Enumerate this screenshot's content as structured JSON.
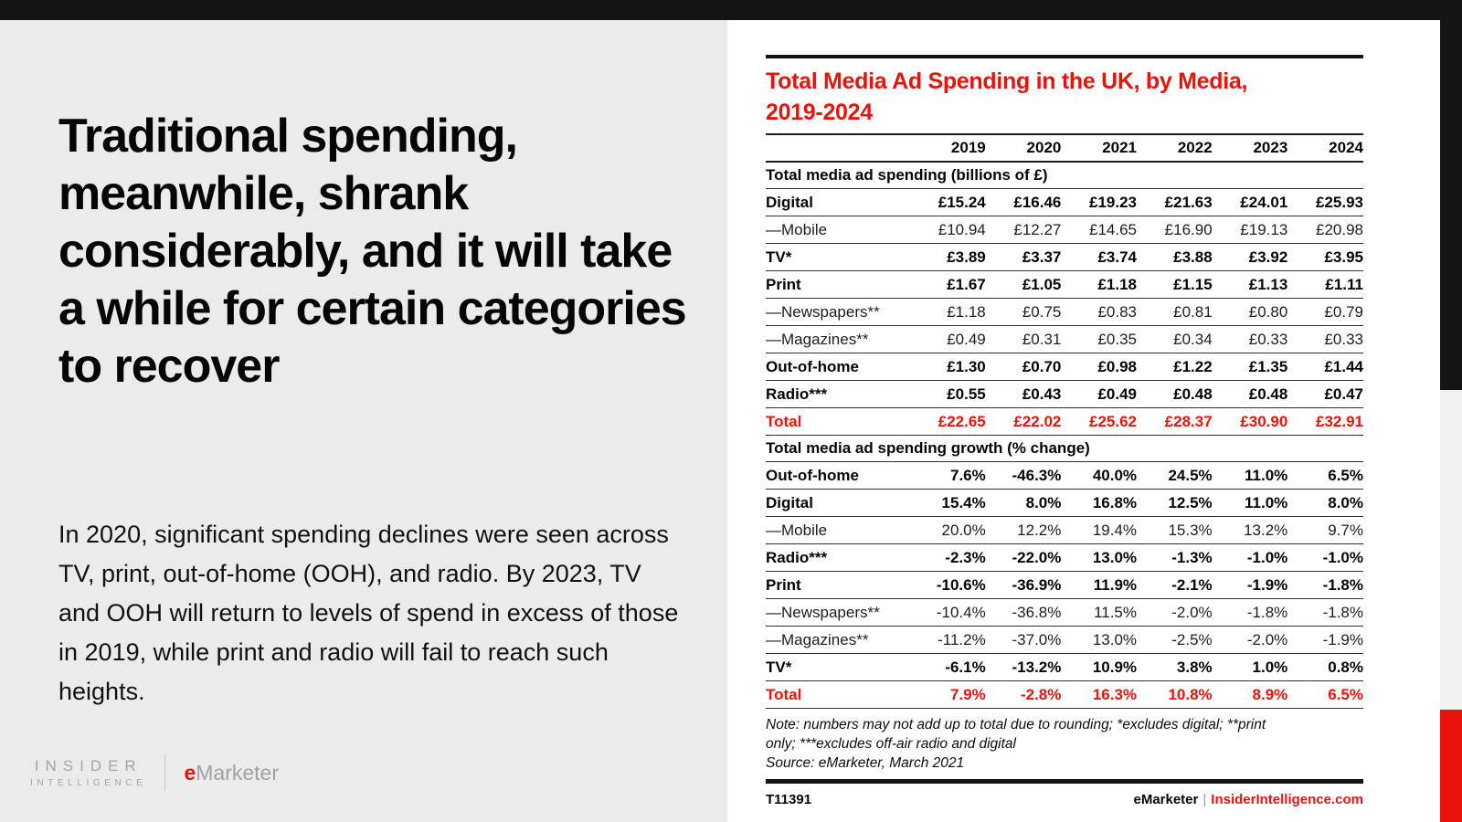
{
  "colors": {
    "accent_red": "#e8130b",
    "top_bar": "#141414",
    "left_panel_bg": "#ebebeb",
    "edge_gray": "#f2f2f2"
  },
  "left_panel": {
    "headline": "Traditional spending, meanwhile, shrank considerably, and it will take a while for certain categories to recover",
    "paragraph": "In 2020, significant spending declines were seen across TV, print, out-of-home (OOH), and radio. By 2023, TV and OOH will return to levels of spend in excess of those in 2019, while print and radio will fail to reach such heights.",
    "logo": {
      "insider": "INSIDER",
      "intelligence": "INTELLIGENCE",
      "emarketer_e": "e",
      "emarketer_rest": "Marketer"
    }
  },
  "table_panel": {
    "title_line1": "Total Media Ad Spending in the UK, by Media,",
    "title_line2": "2019-2024",
    "note_line1": "Note: numbers may not add up to total due to rounding; *excludes digital; **print",
    "note_line2": "only; ***excludes off-air radio and digital",
    "source": "Source: eMarketer, March 2021",
    "footer_id": "T11391",
    "footer_brand": "eMarketer",
    "footer_sep": "|",
    "footer_site": "InsiderIntelligence.com"
  },
  "chart_data": {
    "type": "table",
    "title": "Total Media Ad Spending in the UK, by Media, 2019-2024",
    "columns": [
      "2019",
      "2020",
      "2021",
      "2022",
      "2023",
      "2024"
    ],
    "sections": [
      {
        "header": "Total media ad spending (billions of £)",
        "rows": [
          {
            "label": "Digital",
            "style": "bold",
            "values": [
              "£15.24",
              "£16.46",
              "£19.23",
              "£21.63",
              "£24.01",
              "£25.93"
            ]
          },
          {
            "label": "—Mobile",
            "style": "sub",
            "values": [
              "£10.94",
              "£12.27",
              "£14.65",
              "£16.90",
              "£19.13",
              "£20.98"
            ]
          },
          {
            "label": "TV*",
            "style": "bold",
            "values": [
              "£3.89",
              "£3.37",
              "£3.74",
              "£3.88",
              "£3.92",
              "£3.95"
            ]
          },
          {
            "label": "Print",
            "style": "bold",
            "values": [
              "£1.67",
              "£1.05",
              "£1.18",
              "£1.15",
              "£1.13",
              "£1.11"
            ]
          },
          {
            "label": "—Newspapers**",
            "style": "sub",
            "values": [
              "£1.18",
              "£0.75",
              "£0.83",
              "£0.81",
              "£0.80",
              "£0.79"
            ]
          },
          {
            "label": "—Magazines**",
            "style": "sub",
            "values": [
              "£0.49",
              "£0.31",
              "£0.35",
              "£0.34",
              "£0.33",
              "£0.33"
            ]
          },
          {
            "label": "Out-of-home",
            "style": "bold",
            "values": [
              "£1.30",
              "£0.70",
              "£0.98",
              "£1.22",
              "£1.35",
              "£1.44"
            ]
          },
          {
            "label": "Radio***",
            "style": "bold",
            "values": [
              "£0.55",
              "£0.43",
              "£0.49",
              "£0.48",
              "£0.48",
              "£0.47"
            ]
          },
          {
            "label": "Total",
            "style": "total",
            "values": [
              "£22.65",
              "£22.02",
              "£25.62",
              "£28.37",
              "£30.90",
              "£32.91"
            ]
          }
        ]
      },
      {
        "header": "Total media ad spending growth (% change)",
        "rows": [
          {
            "label": "Out-of-home",
            "style": "bold",
            "values": [
              "7.6%",
              "-46.3%",
              "40.0%",
              "24.5%",
              "11.0%",
              "6.5%"
            ]
          },
          {
            "label": "Digital",
            "style": "bold",
            "values": [
              "15.4%",
              "8.0%",
              "16.8%",
              "12.5%",
              "11.0%",
              "8.0%"
            ]
          },
          {
            "label": "—Mobile",
            "style": "sub",
            "values": [
              "20.0%",
              "12.2%",
              "19.4%",
              "15.3%",
              "13.2%",
              "9.7%"
            ]
          },
          {
            "label": "Radio***",
            "style": "bold",
            "values": [
              "-2.3%",
              "-22.0%",
              "13.0%",
              "-1.3%",
              "-1.0%",
              "-1.0%"
            ]
          },
          {
            "label": "Print",
            "style": "bold",
            "values": [
              "-10.6%",
              "-36.9%",
              "11.9%",
              "-2.1%",
              "-1.9%",
              "-1.8%"
            ]
          },
          {
            "label": "—Newspapers**",
            "style": "sub",
            "values": [
              "-10.4%",
              "-36.8%",
              "11.5%",
              "-2.0%",
              "-1.8%",
              "-1.8%"
            ]
          },
          {
            "label": "—Magazines**",
            "style": "sub",
            "values": [
              "-11.2%",
              "-37.0%",
              "13.0%",
              "-2.5%",
              "-2.0%",
              "-1.9%"
            ]
          },
          {
            "label": "TV*",
            "style": "bold",
            "values": [
              "-6.1%",
              "-13.2%",
              "10.9%",
              "3.8%",
              "1.0%",
              "0.8%"
            ]
          },
          {
            "label": "Total",
            "style": "total",
            "values": [
              "7.9%",
              "-2.8%",
              "16.3%",
              "10.8%",
              "8.9%",
              "6.5%"
            ]
          }
        ]
      }
    ]
  }
}
